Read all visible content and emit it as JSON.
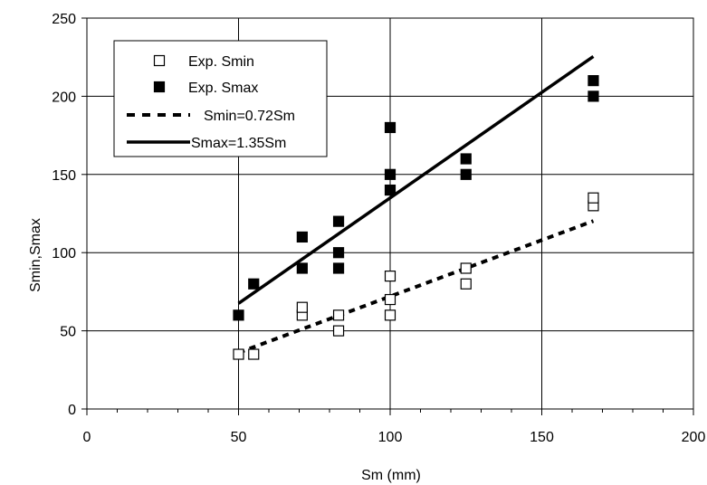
{
  "chart_data": {
    "type": "scatter",
    "xlabel": "Sm (mm)",
    "ylabel": "Smin,Smax",
    "xlim": [
      0,
      200
    ],
    "ylim": [
      0,
      250
    ],
    "x_ticks": [
      0,
      50,
      100,
      150,
      200
    ],
    "y_ticks": [
      0,
      50,
      100,
      150,
      200,
      250
    ],
    "grid": true,
    "legend_position": "top-left",
    "series": [
      {
        "name": "Exp. Smin",
        "kind": "points",
        "marker": "open-square",
        "points": [
          [
            50,
            35
          ],
          [
            55,
            35
          ],
          [
            71,
            60
          ],
          [
            71,
            65
          ],
          [
            83,
            50
          ],
          [
            83,
            60
          ],
          [
            100,
            60
          ],
          [
            100,
            70
          ],
          [
            100,
            85
          ],
          [
            125,
            80
          ],
          [
            125,
            90
          ],
          [
            167,
            130
          ],
          [
            167,
            135
          ]
        ]
      },
      {
        "name": "Exp. Smax",
        "kind": "points",
        "marker": "filled-square",
        "points": [
          [
            50,
            60
          ],
          [
            55,
            80
          ],
          [
            71,
            90
          ],
          [
            71,
            110
          ],
          [
            83,
            90
          ],
          [
            83,
            100
          ],
          [
            83,
            120
          ],
          [
            100,
            140
          ],
          [
            100,
            150
          ],
          [
            100,
            180
          ],
          [
            125,
            150
          ],
          [
            125,
            160
          ],
          [
            167,
            200
          ],
          [
            167,
            210
          ]
        ]
      },
      {
        "name": "Smin=0.72Sm",
        "kind": "line",
        "style": "dashed",
        "x": [
          50,
          167
        ],
        "slope": 0.72
      },
      {
        "name": "Smax=1.35Sm",
        "kind": "line",
        "style": "solid",
        "x": [
          50,
          167
        ],
        "slope": 1.35
      }
    ]
  }
}
